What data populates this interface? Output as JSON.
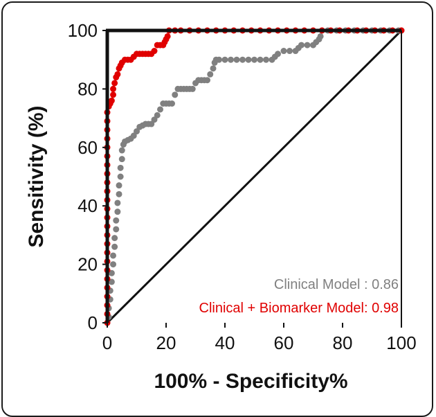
{
  "chart_data": {
    "type": "scatter",
    "xlabel": "100% - Specificity%",
    "ylabel": "Sensitivity (%)",
    "xlim": [
      0,
      100
    ],
    "ylim": [
      0,
      100
    ],
    "xticks": [
      "0",
      "20",
      "40",
      "60",
      "80",
      "100"
    ],
    "yticks": [
      "0",
      "20",
      "40",
      "60",
      "80",
      "100"
    ],
    "grid": false,
    "legend_position": "bottom-right",
    "reference_line": {
      "from": [
        0,
        0
      ],
      "to": [
        100,
        100
      ],
      "color": "#111111"
    },
    "series": [
      {
        "name": "Clinical Model : 0.86",
        "color": "#808080",
        "points": [
          [
            0,
            0
          ],
          [
            0.5,
            2
          ],
          [
            0.5,
            5
          ],
          [
            1,
            8
          ],
          [
            1,
            11
          ],
          [
            1.5,
            14
          ],
          [
            1.5,
            17
          ],
          [
            2,
            20
          ],
          [
            2,
            23
          ],
          [
            2.5,
            26
          ],
          [
            2.5,
            29
          ],
          [
            3,
            32
          ],
          [
            3,
            35
          ],
          [
            3.5,
            38
          ],
          [
            3.5,
            41
          ],
          [
            4,
            44
          ],
          [
            4,
            47
          ],
          [
            4.5,
            50
          ],
          [
            4.5,
            53
          ],
          [
            5,
            56
          ],
          [
            5,
            59
          ],
          [
            5.5,
            61
          ],
          [
            6,
            62
          ],
          [
            7,
            62.5
          ],
          [
            8,
            63
          ],
          [
            9,
            64
          ],
          [
            10,
            65.5
          ],
          [
            11,
            67
          ],
          [
            12,
            67.5
          ],
          [
            13,
            68
          ],
          [
            14,
            68
          ],
          [
            15,
            68
          ],
          [
            16,
            69.5
          ],
          [
            17,
            71
          ],
          [
            18,
            73
          ],
          [
            19,
            75
          ],
          [
            20,
            75
          ],
          [
            21,
            75
          ],
          [
            22,
            75
          ],
          [
            23,
            78
          ],
          [
            24,
            80
          ],
          [
            25,
            80
          ],
          [
            26,
            80
          ],
          [
            27,
            80
          ],
          [
            28,
            80
          ],
          [
            29,
            80
          ],
          [
            30,
            82
          ],
          [
            31,
            83
          ],
          [
            32,
            83
          ],
          [
            33,
            83
          ],
          [
            34,
            83
          ],
          [
            35,
            85
          ],
          [
            36,
            87
          ],
          [
            36.5,
            89
          ],
          [
            37,
            90
          ],
          [
            38,
            90
          ],
          [
            40,
            90
          ],
          [
            42,
            90
          ],
          [
            44,
            90
          ],
          [
            46,
            90
          ],
          [
            48,
            90
          ],
          [
            50,
            90
          ],
          [
            52,
            90
          ],
          [
            54,
            90
          ],
          [
            56,
            90
          ],
          [
            57,
            91
          ],
          [
            58,
            92
          ],
          [
            60,
            93
          ],
          [
            62,
            93
          ],
          [
            64,
            93
          ],
          [
            65,
            94
          ],
          [
            66,
            95
          ],
          [
            68,
            95
          ],
          [
            70,
            95
          ],
          [
            71,
            96
          ],
          [
            72,
            97
          ],
          [
            72.5,
            98
          ],
          [
            73,
            100
          ],
          [
            75,
            100
          ],
          [
            78,
            100
          ],
          [
            81,
            100
          ],
          [
            84,
            100
          ],
          [
            87,
            100
          ],
          [
            90,
            100
          ],
          [
            93,
            100
          ],
          [
            96,
            100
          ],
          [
            99,
            100
          ],
          [
            100,
            100
          ]
        ]
      },
      {
        "name": "Clinical + Biomarker Model: 0.98",
        "color": "#e00000",
        "points": [
          [
            0,
            0
          ],
          [
            0,
            3
          ],
          [
            0,
            6
          ],
          [
            0,
            9
          ],
          [
            0,
            12
          ],
          [
            0,
            15
          ],
          [
            0,
            18
          ],
          [
            0,
            21
          ],
          [
            0,
            24
          ],
          [
            0,
            27
          ],
          [
            0,
            30
          ],
          [
            0,
            33
          ],
          [
            0,
            36
          ],
          [
            0,
            39
          ],
          [
            0,
            42
          ],
          [
            0,
            45
          ],
          [
            0,
            48
          ],
          [
            0,
            51
          ],
          [
            0,
            54
          ],
          [
            0,
            57
          ],
          [
            0,
            60
          ],
          [
            0,
            63
          ],
          [
            0,
            66
          ],
          [
            0,
            69
          ],
          [
            0,
            72
          ],
          [
            0.5,
            74
          ],
          [
            1,
            75
          ],
          [
            1.5,
            76
          ],
          [
            2,
            78
          ],
          [
            2,
            80
          ],
          [
            2.5,
            82
          ],
          [
            3,
            84
          ],
          [
            3.5,
            85
          ],
          [
            4,
            87
          ],
          [
            4.5,
            88
          ],
          [
            5,
            89
          ],
          [
            6,
            90
          ],
          [
            7,
            90
          ],
          [
            8,
            90
          ],
          [
            9,
            91
          ],
          [
            10,
            92
          ],
          [
            11,
            92
          ],
          [
            12,
            92
          ],
          [
            13,
            92
          ],
          [
            14,
            92
          ],
          [
            15,
            92
          ],
          [
            16,
            93
          ],
          [
            17,
            95
          ],
          [
            18,
            95
          ],
          [
            19,
            95
          ],
          [
            19.5,
            96
          ],
          [
            20,
            97
          ],
          [
            20.5,
            98
          ],
          [
            21,
            100
          ],
          [
            23,
            100
          ],
          [
            25,
            100
          ],
          [
            28,
            100
          ],
          [
            31,
            100
          ],
          [
            34,
            100
          ],
          [
            37,
            100
          ],
          [
            40,
            100
          ],
          [
            43,
            100
          ],
          [
            46,
            100
          ],
          [
            49,
            100
          ],
          [
            52,
            100
          ],
          [
            55,
            100
          ],
          [
            58,
            100
          ],
          [
            61,
            100
          ],
          [
            64,
            100
          ],
          [
            67,
            100
          ],
          [
            70,
            100
          ],
          [
            73,
            100
          ],
          [
            76,
            100
          ],
          [
            79,
            100
          ],
          [
            82,
            100
          ],
          [
            85,
            100
          ],
          [
            88,
            100
          ],
          [
            91,
            100
          ],
          [
            94,
            100
          ],
          [
            97,
            100
          ],
          [
            100,
            100
          ]
        ]
      }
    ]
  }
}
